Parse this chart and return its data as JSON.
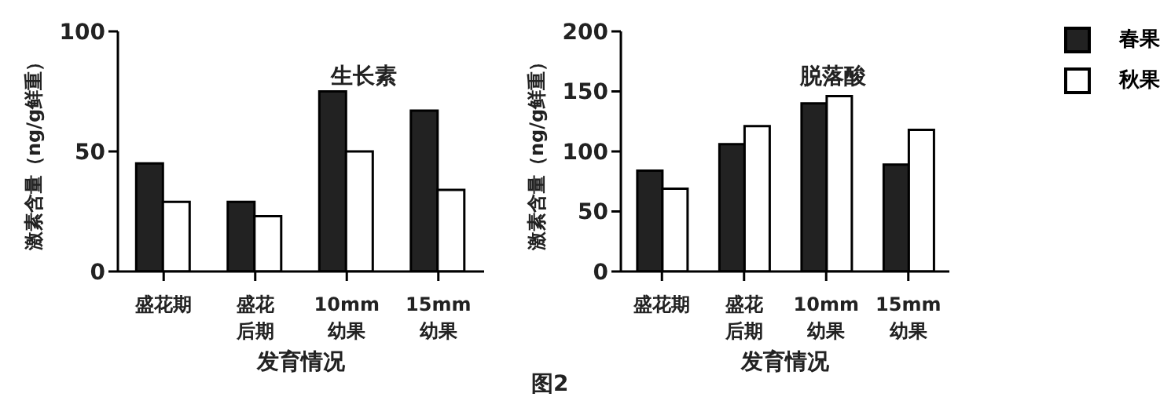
{
  "chart_data": [
    {
      "type": "bar",
      "title": "生长素",
      "xlabel": "发育情况",
      "ylabel": "激素含量（ng/g鲜重）",
      "categories": [
        "盛花期",
        "盛花后期",
        "10mm 幼果",
        "15mm 幼果"
      ],
      "series": [
        {
          "color": "#222222",
          "values": [
            45,
            29,
            75,
            67
          ]
        },
        {
          "color": "#ffffff",
          "values": [
            29,
            23,
            50,
            34
          ]
        }
      ],
      "ylim": [
        0,
        100
      ],
      "yticks": [
        0,
        50,
        100
      ],
      "grid": false,
      "legend": false
    },
    {
      "type": "bar",
      "title": "脱落酸",
      "xlabel": "发育情况",
      "ylabel": "激素含量（ng/g鲜重）",
      "categories": [
        "盛花期",
        "盛花后期",
        "10mm 幼果",
        "15mm 幼果"
      ],
      "series": [
        {
          "name": "春果",
          "color": "#222222",
          "values": [
            84,
            106,
            140,
            89
          ]
        },
        {
          "name": "秋果",
          "color": "#ffffff",
          "values": [
            69,
            121,
            146,
            118
          ]
        }
      ],
      "ylim": [
        0,
        200
      ],
      "yticks": [
        0,
        50,
        100,
        150,
        200
      ],
      "grid": false,
      "legend": "top right",
      "annotations": [
        "图2"
      ]
    }
  ]
}
